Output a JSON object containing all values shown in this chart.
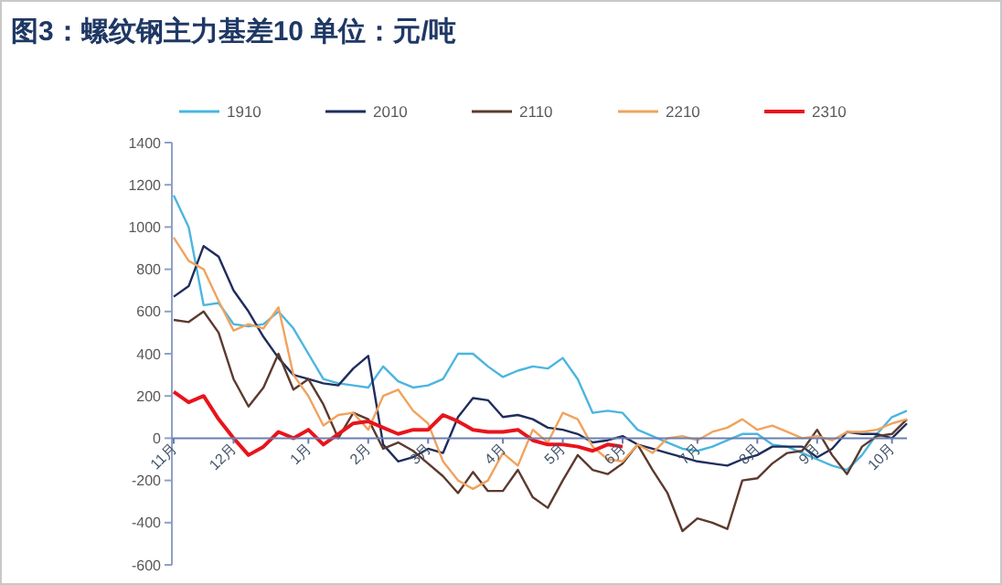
{
  "chart_data": {
    "type": "line",
    "title": "图3：螺纹钢主力基差10  单位：元/吨",
    "legend": "top",
    "grid": false,
    "marker": "none",
    "line_style": "solid",
    "categories": [
      "11月",
      null,
      null,
      null,
      "12月",
      null,
      null,
      null,
      null,
      "1月",
      null,
      null,
      null,
      "2月",
      null,
      null,
      null,
      "3月",
      null,
      null,
      null,
      null,
      "4月",
      null,
      null,
      null,
      "5月",
      null,
      null,
      null,
      "6月",
      null,
      null,
      null,
      null,
      "7月",
      null,
      null,
      null,
      "8月",
      null,
      null,
      null,
      "9月",
      null,
      null,
      null,
      null,
      "10月",
      null
    ],
    "ylim": [
      -600,
      1400
    ],
    "yticks": [
      -600,
      -400,
      -200,
      0,
      200,
      400,
      600,
      800,
      1000,
      1200,
      1400
    ],
    "series": [
      {
        "name": "1910",
        "color": "#4bb5e0",
        "values": [
          1150,
          1000,
          630,
          640,
          540,
          530,
          540,
          600,
          520,
          400,
          280,
          260,
          250,
          240,
          340,
          270,
          240,
          250,
          280,
          400,
          400,
          340,
          290,
          320,
          340,
          330,
          380,
          280,
          120,
          130,
          120,
          40,
          10,
          -20,
          -50,
          -60,
          -40,
          -10,
          20,
          20,
          -30,
          -40,
          -70,
          -100,
          -130,
          -150,
          -80,
          20,
          100,
          130
        ]
      },
      {
        "name": "2010",
        "color": "#1f2d5c",
        "values": [
          670,
          720,
          910,
          860,
          700,
          600,
          480,
          380,
          300,
          280,
          260,
          250,
          330,
          390,
          -30,
          -110,
          -90,
          -50,
          -70,
          100,
          190,
          180,
          100,
          110,
          90,
          50,
          40,
          20,
          -20,
          -10,
          10,
          -30,
          -50,
          -70,
          -90,
          -110,
          -120,
          -130,
          -100,
          -80,
          -40,
          -40,
          -40,
          -90,
          -50,
          30,
          20,
          20,
          0,
          70
        ]
      },
      {
        "name": "2110",
        "color": "#5c3a2e",
        "values": [
          560,
          550,
          600,
          500,
          280,
          150,
          240,
          400,
          230,
          280,
          160,
          0,
          120,
          90,
          -50,
          -20,
          -60,
          -120,
          -180,
          -260,
          -160,
          -250,
          -250,
          -150,
          -280,
          -330,
          -200,
          -80,
          -150,
          -170,
          -120,
          -30,
          -150,
          -260,
          -440,
          -380,
          -400,
          -430,
          -200,
          -190,
          -120,
          -70,
          -60,
          40,
          -80,
          -170,
          -40,
          10,
          20,
          90
        ]
      },
      {
        "name": "2210",
        "color": "#f0a35e",
        "values": [
          950,
          840,
          800,
          650,
          510,
          540,
          520,
          620,
          300,
          200,
          60,
          110,
          120,
          40,
          200,
          230,
          130,
          70,
          -110,
          -200,
          -240,
          -200,
          -70,
          -130,
          40,
          -20,
          120,
          90,
          -40,
          -100,
          -110,
          -30,
          -70,
          0,
          10,
          -10,
          30,
          50,
          90,
          40,
          60,
          30,
          0,
          10,
          -10,
          30,
          30,
          40,
          70,
          90
        ]
      },
      {
        "name": "2310",
        "color": "#e8141c",
        "values": [
          220,
          170,
          200,
          90,
          0,
          -80,
          -40,
          30,
          0,
          40,
          -30,
          20,
          70,
          80,
          50,
          20,
          40,
          40,
          110,
          80,
          40,
          30,
          30,
          40,
          -10,
          -30,
          -30,
          -40,
          -60,
          -30,
          -40,
          null,
          null,
          null,
          null,
          null,
          null,
          null,
          null,
          null,
          null,
          null,
          null,
          null,
          null,
          null,
          null,
          null,
          null,
          null
        ]
      }
    ]
  }
}
